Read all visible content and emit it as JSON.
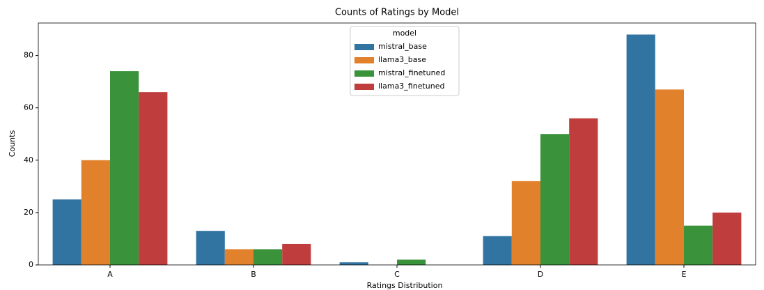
{
  "chart_data": {
    "type": "bar",
    "title": "Counts of Ratings by Model",
    "x_label": "Ratings Distribution",
    "y_label": "Counts",
    "categories": [
      "A",
      "B",
      "C",
      "D",
      "E"
    ],
    "series": [
      {
        "name": "mistral_base",
        "color": "#3274a1",
        "values": [
          25,
          13,
          1,
          11,
          88
        ]
      },
      {
        "name": "llama3_base",
        "color": "#e1812c",
        "values": [
          40,
          6,
          0,
          32,
          67
        ]
      },
      {
        "name": "mistral_finetuned",
        "color": "#3a923a",
        "values": [
          74,
          6,
          2,
          50,
          15
        ]
      },
      {
        "name": "llama3_finetuned",
        "color": "#c03d3e",
        "values": [
          66,
          8,
          0,
          56,
          20
        ]
      }
    ],
    "legend_title": "model",
    "legend_position": "upper center",
    "ylim": [
      0,
      92.4
    ],
    "yticks": [
      0,
      20,
      40,
      60,
      80
    ],
    "grid": false
  }
}
